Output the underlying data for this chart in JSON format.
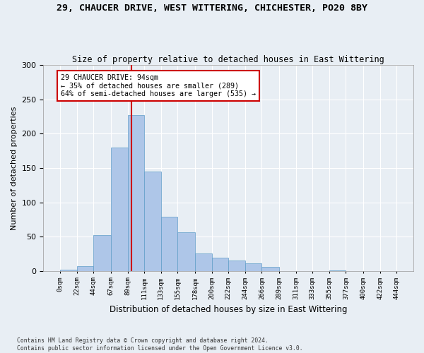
{
  "title_line1": "29, CHAUCER DRIVE, WEST WITTERING, CHICHESTER, PO20 8BY",
  "title_line2": "Size of property relative to detached houses in East Wittering",
  "xlabel": "Distribution of detached houses by size in East Wittering",
  "ylabel": "Number of detached properties",
  "footnote": "Contains HM Land Registry data © Crown copyright and database right 2024.\nContains public sector information licensed under the Open Government Licence v3.0.",
  "bin_edges": [
    0,
    22,
    44,
    67,
    89,
    111,
    133,
    155,
    178,
    200,
    222,
    244,
    266,
    289,
    311,
    333,
    355,
    377,
    400,
    422,
    444
  ],
  "bin_labels": [
    "0sqm",
    "22sqm",
    "44sqm",
    "67sqm",
    "89sqm",
    "111sqm",
    "133sqm",
    "155sqm",
    "178sqm",
    "200sqm",
    "222sqm",
    "244sqm",
    "266sqm",
    "289sqm",
    "311sqm",
    "333sqm",
    "355sqm",
    "377sqm",
    "400sqm",
    "422sqm",
    "444sqm"
  ],
  "hist_values": [
    2,
    7,
    52,
    180,
    227,
    145,
    79,
    56,
    26,
    19,
    15,
    11,
    6,
    0,
    0,
    0,
    1,
    0,
    0,
    0
  ],
  "bar_color": "#aec6e8",
  "bar_edge_color": "#5f9dc8",
  "vline_x": 94,
  "vline_color": "#cc0000",
  "annotation_text": "29 CHAUCER DRIVE: 94sqm\n← 35% of detached houses are smaller (289)\n64% of semi-detached houses are larger (535) →",
  "annotation_box_color": "#ffffff",
  "annotation_box_edge_color": "#cc0000",
  "ylim_max": 300,
  "yticks": [
    0,
    50,
    100,
    150,
    200,
    250,
    300
  ],
  "bg_color": "#e8eef4",
  "grid_color": "#ffffff"
}
